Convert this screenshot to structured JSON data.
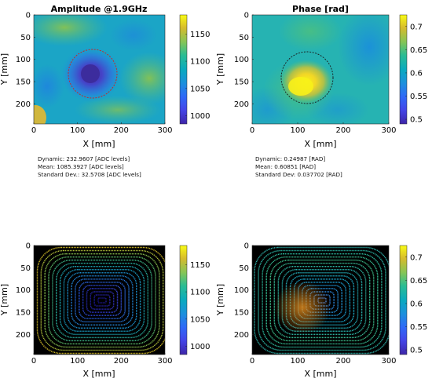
{
  "panels": [
    {
      "id": "amp-map",
      "kind": "heatmap",
      "title": "Amplitude @1.9GHz",
      "xlabel": "X [mm]",
      "ylabel": "Y [mm]",
      "xticks": [
        "0",
        "100",
        "200",
        "300"
      ],
      "yticks": [
        "0",
        "50",
        "100",
        "150",
        "200"
      ],
      "xlim": [
        0,
        300
      ],
      "ylim": [
        0,
        245
      ],
      "colorbar": {
        "min": 985,
        "max": 1185,
        "ticks": [
          1000,
          1050,
          1100,
          1150
        ]
      },
      "feature": {
        "label": "dashed circle",
        "value": "low amplitude region"
      }
    },
    {
      "id": "phase-map",
      "kind": "heatmap",
      "title": "Phase [rad]",
      "xlabel": "X [mm]",
      "ylabel": "Y [mm]",
      "xticks": [
        "0",
        "100",
        "200",
        "300"
      ],
      "yticks": [
        "0",
        "50",
        "100",
        "150",
        "200"
      ],
      "xlim": [
        0,
        300
      ],
      "ylim": [
        0,
        245
      ],
      "colorbar": {
        "min": 0.49,
        "max": 0.725,
        "ticks": [
          0.5,
          0.55,
          0.6,
          0.65,
          0.7
        ]
      },
      "feature": {
        "label": "dashed circle",
        "value": "high phase region"
      }
    },
    {
      "id": "amp-scan",
      "kind": "scanpath",
      "title": "",
      "xlabel": "X [mm]",
      "ylabel": "Y [mm]",
      "xticks": [
        "0",
        "100",
        "200",
        "300"
      ],
      "yticks": [
        "0",
        "50",
        "100",
        "150",
        "200"
      ],
      "xlim": [
        0,
        300
      ],
      "ylim": [
        0,
        245
      ],
      "colorbar": {
        "min": 985,
        "max": 1185,
        "ticks": [
          1000,
          1050,
          1100,
          1150
        ]
      }
    },
    {
      "id": "phase-scan",
      "kind": "scanpath",
      "title": "",
      "xlabel": "X [mm]",
      "ylabel": "Y [mm]",
      "xticks": [
        "0",
        "100",
        "200",
        "300"
      ],
      "yticks": [
        "0",
        "50",
        "100",
        "150",
        "200"
      ],
      "xlim": [
        0,
        300
      ],
      "ylim": [
        0,
        245
      ],
      "colorbar": {
        "min": 0.49,
        "max": 0.725,
        "ticks": [
          0.5,
          0.55,
          0.6,
          0.65,
          0.7
        ]
      }
    }
  ],
  "stats_left": {
    "dynamic": "Dynamic: 232.9607 [ADC levels]",
    "mean": "Mean: 1085.3927 [ADC levels]",
    "std": "Standard Dev.: 32.5708 [ADC levels]"
  },
  "stats_right": {
    "dynamic": "Dynamic: 0.24987 [RAD]",
    "mean": "Mean: 0.60851 [RAD]",
    "std": "Standard Dev: 0.037702 [RAD]"
  },
  "chart_data": [
    {
      "type": "heatmap",
      "title": "Amplitude @1.9GHz",
      "xlabel": "X [mm]",
      "ylabel": "Y [mm]",
      "xlim": [
        0,
        300
      ],
      "ylim": [
        0,
        245
      ],
      "colorbar_range": [
        985,
        1185
      ],
      "colormap": "parula",
      "background_value": 1095,
      "anomaly": {
        "center_mm": [
          130,
          132
        ],
        "radius_mm": 55,
        "value": 990,
        "marked_by": "red dashed circle"
      }
    },
    {
      "type": "heatmap",
      "title": "Phase [rad]",
      "xlabel": "X [mm]",
      "ylabel": "Y [mm]",
      "xlim": [
        0,
        300
      ],
      "ylim": [
        0,
        245
      ],
      "colorbar_range": [
        0.49,
        0.725
      ],
      "colormap": "parula",
      "background_value": 0.6,
      "anomaly": {
        "center_mm": [
          123,
          138
        ],
        "radius_mm": 58,
        "value": 0.7,
        "marked_by": "black dashed circle"
      }
    },
    {
      "type": "scatter",
      "title": "",
      "xlabel": "X [mm]",
      "ylabel": "Y [mm]",
      "xlim": [
        0,
        300
      ],
      "ylim": [
        0,
        245
      ],
      "colorbar_range": [
        985,
        1185
      ],
      "pattern": "concentric rectangular spiral scan path on black background"
    },
    {
      "type": "scatter",
      "title": "",
      "xlabel": "X [mm]",
      "ylabel": "Y [mm]",
      "xlim": [
        0,
        300
      ],
      "ylim": [
        0,
        245
      ],
      "colorbar_range": [
        0.49,
        0.725
      ],
      "pattern": "concentric rectangular spiral scan path on black background"
    }
  ]
}
